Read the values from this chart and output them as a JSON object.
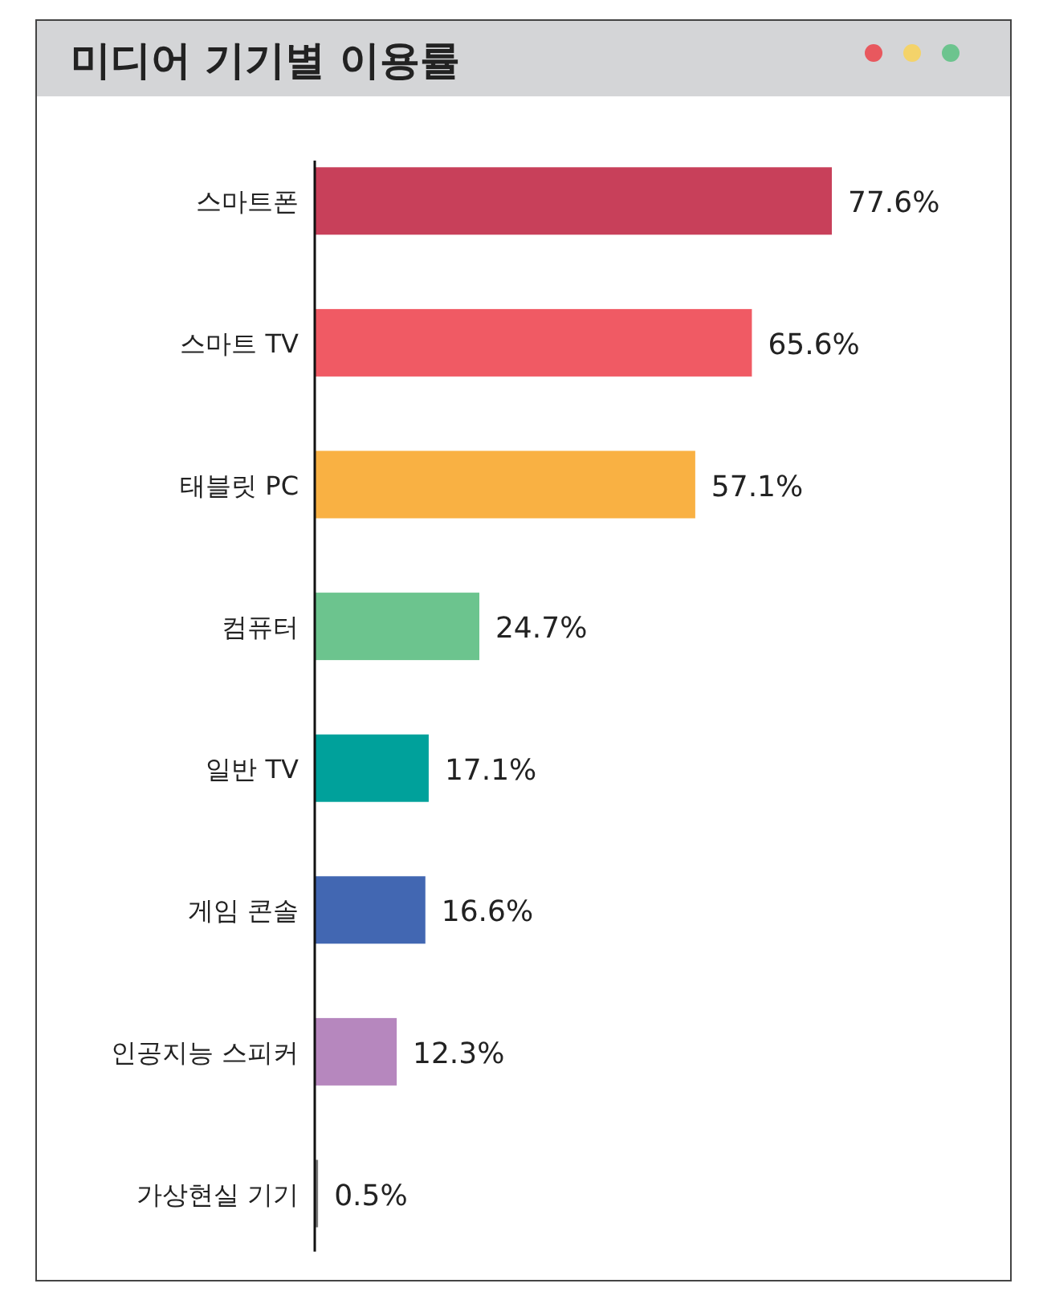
{
  "chart_data": {
    "type": "bar",
    "orientation": "horizontal",
    "title": "미디어 기기별 이용률",
    "categories": [
      "스마트폰",
      "스마트 TV",
      "태블릿 PC",
      "컴퓨터",
      "일반 TV",
      "게임 콘솔",
      "인공지능 스피커",
      "가상현실 기기"
    ],
    "values": [
      77.6,
      65.6,
      57.1,
      24.7,
      17.1,
      16.6,
      12.3,
      0.5
    ],
    "colors": [
      "#c8405a",
      "#f05a64",
      "#f9b143",
      "#6cc48e",
      "#00a19b",
      "#4267b2",
      "#b687be",
      "#777777"
    ],
    "value_labels": [
      "77.6%",
      "65.6%",
      "57.1%",
      "24.7%",
      "17.1%",
      "16.6%",
      "12.3%",
      "0.5%"
    ]
  }
}
